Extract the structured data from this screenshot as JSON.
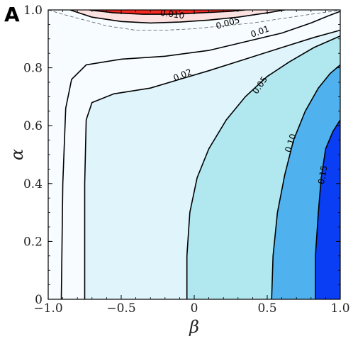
{
  "panel_label": "A",
  "colors": {
    "level_neg_005": "#f6fcff",
    "level_0_02": "#e0f4fb",
    "level_0_05": "#b1e8f0",
    "level_0_10": "#4fb2ee",
    "level_0_15": "#0a3ef5",
    "red_light": "#fde0e0",
    "red_mid": "#fbb4b4",
    "red_dark": "#f52a22",
    "line": "#000000"
  },
  "chart_data": {
    "type": "contour",
    "xlabel": "β",
    "ylabel": "α",
    "xlim": [
      -1.0,
      1.0
    ],
    "ylim": [
      0,
      1.0
    ],
    "x_ticks": [
      -1.0,
      -0.5,
      0,
      0.5,
      1.0
    ],
    "x_tick_labels": [
      "−1.0",
      "−0.5",
      "0",
      "0.5",
      "1.0"
    ],
    "y_ticks": [
      0,
      0.2,
      0.4,
      0.6,
      0.8,
      1.0
    ],
    "y_tick_labels": [
      "0",
      "0.2",
      "0.4",
      "0.6",
      "0.8",
      "1.0"
    ],
    "contour_labels": [
      {
        "text": "0.010",
        "x": -0.15,
        "y": 0.985
      },
      {
        "text": "0.005",
        "x": 0.23,
        "y": 0.955
      },
      {
        "text": "0.01",
        "x": 0.45,
        "y": 0.925
      },
      {
        "text": "0.02",
        "x": -0.08,
        "y": 0.775
      },
      {
        "text": "0.05",
        "x": 0.45,
        "y": 0.74
      },
      {
        "text": "0.10",
        "x": 0.66,
        "y": 0.54
      },
      {
        "text": "0.15",
        "x": 0.88,
        "y": 0.43
      }
    ],
    "contours": [
      {
        "level": "0.01",
        "points": [
          [
            -0.91,
            0
          ],
          [
            -0.9,
            0.4
          ],
          [
            -0.88,
            0.66
          ],
          [
            -0.84,
            0.76
          ],
          [
            -0.74,
            0.81
          ],
          [
            -0.5,
            0.83
          ],
          [
            -0.2,
            0.84
          ],
          [
            0.1,
            0.86
          ],
          [
            0.35,
            0.89
          ],
          [
            0.6,
            0.92
          ],
          [
            0.8,
            0.955
          ],
          [
            0.92,
            0.98
          ],
          [
            1.0,
            0.995
          ]
        ]
      },
      {
        "level": "0.02",
        "points": [
          [
            -0.75,
            0
          ],
          [
            -0.75,
            0.4
          ],
          [
            -0.74,
            0.62
          ],
          [
            -0.7,
            0.68
          ],
          [
            -0.55,
            0.71
          ],
          [
            -0.3,
            0.73
          ],
          [
            -0.1,
            0.76
          ],
          [
            0.1,
            0.79
          ],
          [
            0.35,
            0.83
          ],
          [
            0.6,
            0.87
          ],
          [
            0.82,
            0.905
          ],
          [
            1.0,
            0.93
          ]
        ]
      },
      {
        "level": "0.05",
        "points": [
          [
            -0.05,
            0
          ],
          [
            -0.05,
            0.15
          ],
          [
            -0.03,
            0.3
          ],
          [
            0.02,
            0.42
          ],
          [
            0.1,
            0.52
          ],
          [
            0.22,
            0.62
          ],
          [
            0.35,
            0.7
          ],
          [
            0.5,
            0.77
          ],
          [
            0.65,
            0.82
          ],
          [
            0.82,
            0.87
          ],
          [
            1.0,
            0.91
          ]
        ]
      },
      {
        "level": "0.10",
        "points": [
          [
            0.53,
            0
          ],
          [
            0.54,
            0.15
          ],
          [
            0.57,
            0.3
          ],
          [
            0.62,
            0.43
          ],
          [
            0.68,
            0.55
          ],
          [
            0.76,
            0.65
          ],
          [
            0.85,
            0.73
          ],
          [
            0.93,
            0.78
          ],
          [
            1.0,
            0.81
          ]
        ]
      },
      {
        "level": "0.15",
        "points": [
          [
            0.83,
            0
          ],
          [
            0.83,
            0.15
          ],
          [
            0.85,
            0.3
          ],
          [
            0.87,
            0.42
          ],
          [
            0.9,
            0.52
          ],
          [
            0.95,
            0.58
          ],
          [
            1.0,
            0.62
          ]
        ]
      },
      {
        "level": "0.005",
        "dashed": true,
        "points": [
          [
            -1.0,
            1.0
          ],
          [
            -0.9,
            0.985
          ],
          [
            -0.75,
            0.965
          ],
          [
            -0.6,
            0.945
          ],
          [
            -0.4,
            0.93
          ],
          [
            -0.2,
            0.93
          ],
          [
            0.0,
            0.935
          ],
          [
            0.2,
            0.945
          ],
          [
            0.4,
            0.955
          ],
          [
            0.6,
            0.97
          ],
          [
            0.8,
            0.985
          ],
          [
            0.95,
            0.995
          ],
          [
            1.0,
            1.0
          ]
        ]
      },
      {
        "level": "red_outer",
        "points": [
          [
            -0.85,
            1.0
          ],
          [
            -0.7,
            0.975
          ],
          [
            -0.5,
            0.96
          ],
          [
            -0.3,
            0.955
          ],
          [
            -0.1,
            0.958
          ],
          [
            0.1,
            0.965
          ],
          [
            0.3,
            0.975
          ],
          [
            0.5,
            0.99
          ],
          [
            0.62,
            1.0
          ]
        ]
      },
      {
        "level": "red_inner",
        "points": [
          [
            -0.72,
            1.0
          ],
          [
            -0.55,
            0.99
          ],
          [
            -0.35,
            0.985
          ],
          [
            -0.15,
            0.985
          ],
          [
            0.05,
            0.99
          ],
          [
            0.25,
            0.995
          ],
          [
            0.35,
            1.0
          ]
        ]
      }
    ]
  }
}
